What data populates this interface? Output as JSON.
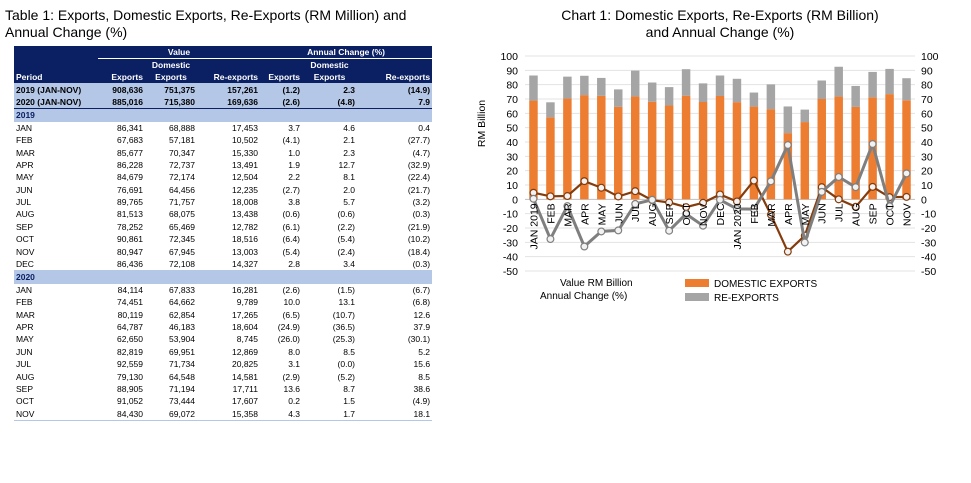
{
  "table": {
    "title_line1": "Table 1: Exports, Domestic Exports, Re-Exports (RM Million)  and",
    "title_line2": "Annual Change (%)",
    "group_value": "Value",
    "group_change": "Annual Change (%)",
    "col_period": "Period",
    "col_exports": "Exports",
    "col_domestic_1": "Domestic",
    "col_domestic_2": "Exports",
    "col_reexports": "Re-exports",
    "col_chg_exports": "Exports",
    "col_chg_domestic_1": "Domestic",
    "col_chg_domestic_2": "Exports",
    "col_chg_reexports": "Re-exports",
    "summary": [
      [
        "2019 (JAN-NOV)",
        "908,636",
        "751,375",
        "157,261",
        "(1.2)",
        "2.3",
        "(14.9)"
      ],
      [
        "2020 (JAN-NOV)",
        "885,016",
        "715,380",
        "169,636",
        "(2.6)",
        "(4.8)",
        "7.9"
      ]
    ],
    "sections": [
      {
        "year": "2019",
        "rows": [
          [
            "JAN",
            "86,341",
            "68,888",
            "17,453",
            "3.7",
            "4.6",
            "0.4"
          ],
          [
            "FEB",
            "67,683",
            "57,181",
            "10,502",
            "(4.1)",
            "2.1",
            "(27.7)"
          ],
          [
            "MAR",
            "85,677",
            "70,347",
            "15,330",
            "1.0",
            "2.3",
            "(4.7)"
          ],
          [
            "APR",
            "86,228",
            "72,737",
            "13,491",
            "1.9",
            "12.7",
            "(32.9)"
          ],
          [
            "MAY",
            "84,679",
            "72,174",
            "12,504",
            "2.2",
            "8.1",
            "(22.4)"
          ],
          [
            "JUN",
            "76,691",
            "64,456",
            "12,235",
            "(2.7)",
            "2.0",
            "(21.7)"
          ],
          [
            "JUL",
            "89,765",
            "71,757",
            "18,008",
            "3.8",
            "5.7",
            "(3.2)"
          ],
          [
            "AUG",
            "81,513",
            "68,075",
            "13,438",
            "(0.6)",
            "(0.6)",
            "(0.3)"
          ],
          [
            "SEP",
            "78,252",
            "65,469",
            "12,782",
            "(6.1)",
            "(2.2)",
            "(21.9)"
          ],
          [
            "OCT",
            "90,861",
            "72,345",
            "18,516",
            "(6.4)",
            "(5.4)",
            "(10.2)"
          ],
          [
            "NOV",
            "80,947",
            "67,945",
            "13,003",
            "(5.4)",
            "(2.4)",
            "(18.4)"
          ],
          [
            "DEC",
            "86,436",
            "72,108",
            "14,327",
            "2.8",
            "3.4",
            "(0.3)"
          ]
        ]
      },
      {
        "year": "2020",
        "rows": [
          [
            "JAN",
            "84,114",
            "67,833",
            "16,281",
            "(2.6)",
            "(1.5)",
            "(6.7)"
          ],
          [
            "FEB",
            "74,451",
            "64,662",
            "9,789",
            "10.0",
            "13.1",
            "(6.8)"
          ],
          [
            "MAR",
            "80,119",
            "62,854",
            "17,265",
            "(6.5)",
            "(10.7)",
            "12.6"
          ],
          [
            "APR",
            "64,787",
            "46,183",
            "18,604",
            "(24.9)",
            "(36.5)",
            "37.9"
          ],
          [
            "MAY",
            "62,650",
            "53,904",
            "8,745",
            "(26.0)",
            "(25.3)",
            "(30.1)"
          ],
          [
            "JUN",
            "82,819",
            "69,951",
            "12,869",
            "8.0",
            "8.5",
            "5.2"
          ],
          [
            "JUL",
            "92,559",
            "71,734",
            "20,825",
            "3.1",
            "(0.0)",
            "15.6"
          ],
          [
            "AUG",
            "79,130",
            "64,548",
            "14,581",
            "(2.9)",
            "(5.2)",
            "8.5"
          ],
          [
            "SEP",
            "88,905",
            "71,194",
            "17,711",
            "13.6",
            "8.7",
            "38.6"
          ],
          [
            "OCT",
            "91,052",
            "73,444",
            "17,607",
            "0.2",
            "1.5",
            "(4.9)"
          ],
          [
            "NOV",
            "84,430",
            "69,072",
            "15,358",
            "4.3",
            "1.7",
            "18.1"
          ]
        ]
      }
    ]
  },
  "chart_data": {
    "type": "bar",
    "title": "Chart 1: Domestic Exports, Re-Exports (RM Billion)",
    "subtitle": "and Annual Change (%)",
    "ylabel": "RM Billion",
    "ylim": [
      -50,
      100
    ],
    "yticks": [
      -50,
      -40,
      -30,
      -20,
      -10,
      0,
      10,
      20,
      30,
      40,
      50,
      60,
      70,
      80,
      90,
      100
    ],
    "categories": [
      "JAN 2019",
      "FEB",
      "MAR",
      "APR",
      "MAY",
      "JUN",
      "JUL",
      "AUG",
      "SEP",
      "OCT",
      "NOV",
      "DEC",
      "JAN 2020",
      "FEB",
      "MAR",
      "APR",
      "MAY",
      "JUN",
      "JUL",
      "AUG",
      "SEP",
      "OCT",
      "NOV"
    ],
    "stacked": true,
    "series": [
      {
        "name": "DOMESTIC EXPORTS",
        "kind": "bar",
        "color": "#ed7d31",
        "values": [
          68.9,
          57.2,
          70.3,
          72.7,
          72.2,
          64.5,
          71.8,
          68.1,
          65.5,
          72.3,
          67.9,
          72.1,
          67.8,
          64.7,
          62.9,
          46.2,
          53.9,
          70.0,
          71.7,
          64.5,
          71.2,
          73.4,
          69.1
        ]
      },
      {
        "name": "RE-EXPORTS",
        "kind": "bar",
        "color": "#a5a5a5",
        "values": [
          17.5,
          10.5,
          15.3,
          13.5,
          12.5,
          12.2,
          18.0,
          13.4,
          12.8,
          18.5,
          13.0,
          14.3,
          16.3,
          9.8,
          17.3,
          18.6,
          8.7,
          12.9,
          20.8,
          14.6,
          17.7,
          17.6,
          15.4
        ]
      },
      {
        "name": "Domestic Exports Annual Change (%)",
        "kind": "line",
        "color": "#843c0c",
        "values": [
          4.6,
          2.1,
          2.3,
          12.7,
          8.1,
          2.0,
          5.7,
          -0.6,
          -2.2,
          -5.4,
          -2.4,
          3.4,
          -1.5,
          13.1,
          -10.7,
          -36.5,
          -25.3,
          8.5,
          0.0,
          -5.2,
          8.7,
          1.5,
          1.7
        ]
      },
      {
        "name": "Re-exports Annual Change (%)",
        "kind": "line",
        "color": "#7f7f7f",
        "values": [
          0.4,
          -27.7,
          -4.7,
          -32.9,
          -22.4,
          -21.7,
          -3.2,
          -0.3,
          -21.9,
          -10.2,
          -18.4,
          -0.3,
          -6.7,
          -6.8,
          12.6,
          37.9,
          -30.1,
          5.2,
          15.6,
          8.5,
          38.6,
          -4.9,
          18.1
        ]
      }
    ],
    "legend_left_1": "Value RM  Billion",
    "legend_left_2": "Annual Change  (%)",
    "legend_domestic": "DOMESTIC EXPORTS",
    "legend_reexports": "RE-EXPORTS"
  }
}
